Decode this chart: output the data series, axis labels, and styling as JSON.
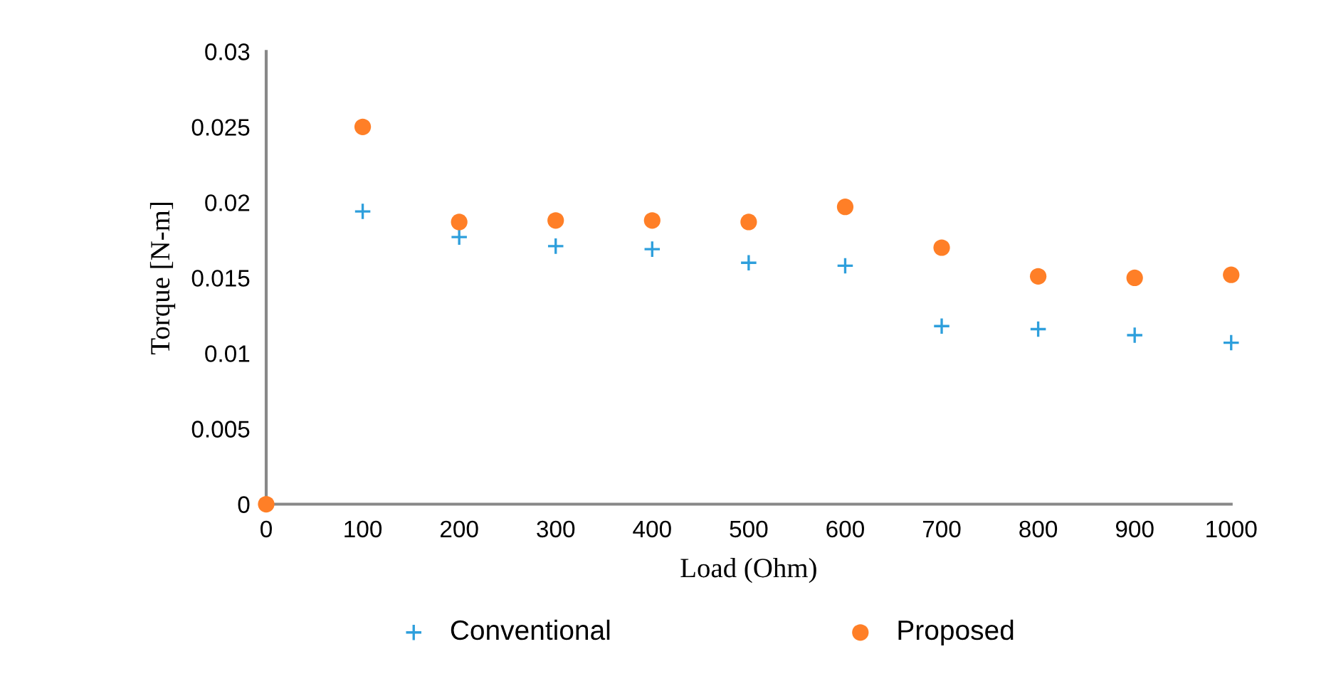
{
  "chart_data": {
    "type": "scatter",
    "xlabel": "Load (Ohm)",
    "ylabel": "Torque [N-m]",
    "x": [
      0,
      100,
      200,
      300,
      400,
      500,
      600,
      700,
      800,
      900,
      1000
    ],
    "series": [
      {
        "name": "Conventional",
        "color": "#2e9fdc",
        "marker": "cross",
        "values": [
          null,
          0.0194,
          0.0177,
          0.0171,
          0.0169,
          0.016,
          0.0158,
          0.0118,
          0.0116,
          0.0112,
          0.0107
        ]
      },
      {
        "name": "Proposed",
        "color": "#ff7f27",
        "marker": "circle",
        "values": [
          0,
          0.025,
          0.0187,
          0.0188,
          0.0188,
          0.0187,
          0.0197,
          0.017,
          0.0151,
          0.015,
          0.0152
        ]
      }
    ],
    "xlim": [
      0,
      1000
    ],
    "xticks": [
      0,
      100,
      200,
      300,
      400,
      500,
      600,
      700,
      800,
      900,
      1000
    ],
    "ylim": [
      0,
      0.03
    ],
    "yticks": [
      0,
      0.005,
      0.01,
      0.015,
      0.02,
      0.025,
      0.03
    ],
    "grid": false,
    "legend": "bottom"
  }
}
